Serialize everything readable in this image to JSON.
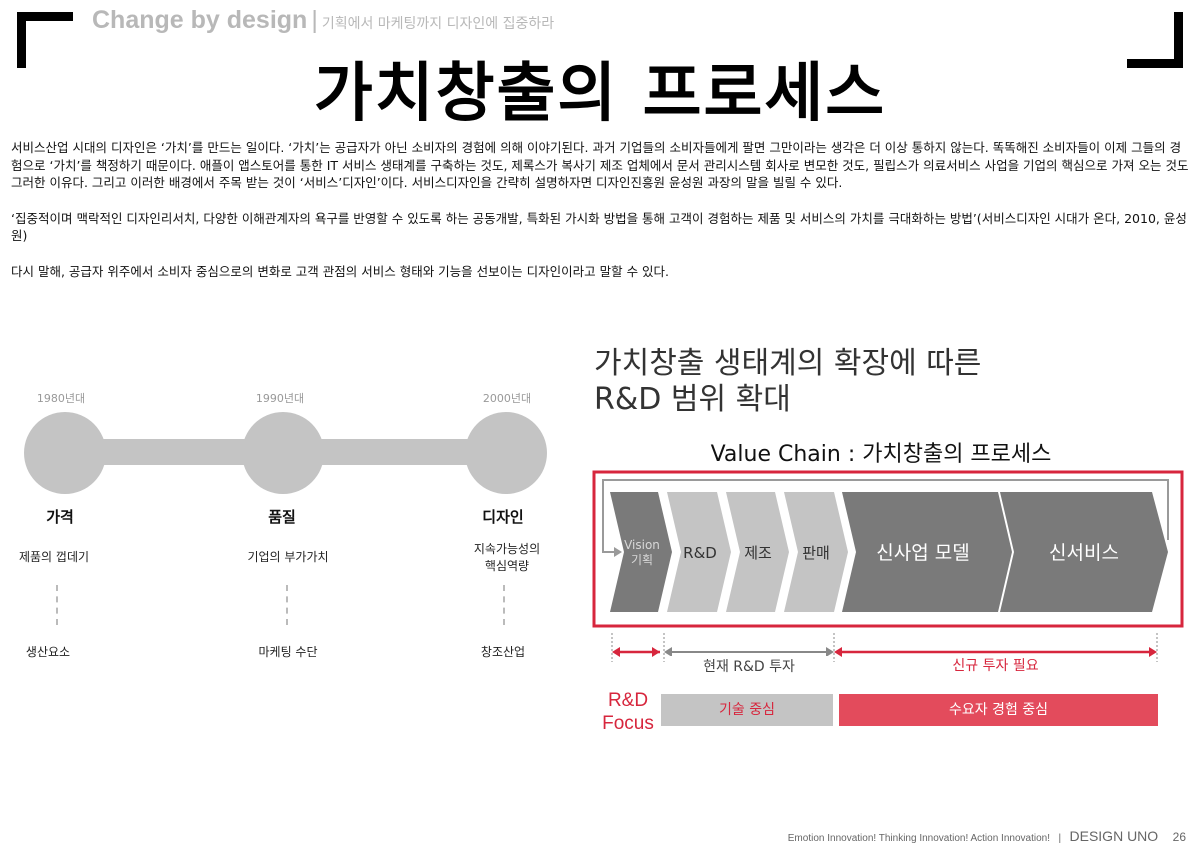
{
  "header": {
    "brand": "Change by design",
    "separator": "|",
    "subtitle": "기획에서 마케팅까지 디자인에 집중하라"
  },
  "title": "가치창출의 프로세스",
  "paragraphs": [
    "서비스산업 시대의 디자인은 ‘가치’를 만드는 일이다. ‘가치’는 공급자가 아닌 소비자의 경험에 의해 이야기된다. 과거 기업들의 소비자들에게 팔면 그만이라는 생각은 더 이상 통하지 않는다. 똑똑해진 소비자들이 이제 그들의 경험으로 ‘가치’를 책정하기 때문이다. 애플이 앱스토어를 통한 IT 서비스 생태계를 구축하는 것도, 제록스가 복사기 제조 업체에서 문서 관리시스템 회사로 변모한 것도, 필립스가 의료서비스 사업을 기업의 핵심으로 가져 오는 것도 그러한 이유다. 그리고 이러한 배경에서 주목 받는 것이 ‘서비스’디자인’이다. 서비스디자인을 간략히 설명하자면 디자인진흥원 윤성원 과장의 말을 빌릴 수 있다.",
    "‘집중적이며 맥락적인 디자인리서치, 다양한 이해관계자의 욕구를 반영할 수 있도록 하는 공동개발, 특화된 가시화 방법을 통해 고객이 경험하는 제품 및 서비스의 가치를 극대화하는 방법’(서비스디자인 시대가 온다, 2010, 윤성원)",
    "다시 말해, 공급자 위주에서 소비자 중심으로의 변화로 고객 관점의 서비스 형태와 기능을 선보이는 디자인이라고 말할 수 있다."
  ],
  "timeline": [
    {
      "year": "1980년대",
      "name": "가격",
      "desc": "제품의 껍데기",
      "outcome": "생산요소"
    },
    {
      "year": "1990년대",
      "name": "품질",
      "desc": "기업의 부가가치",
      "outcome": "마케팅 수단"
    },
    {
      "year": "2000년대",
      "name": "디자인",
      "desc": "지속가능성의\n핵심역량",
      "outcome": "창조산업"
    }
  ],
  "diagram": {
    "title_line1": "가치창출 생태계의 확장에 따른",
    "title_line2": "R&D 범위 확대",
    "value_chain_title": "Value Chain : 가치창출의 프로세스",
    "chain": [
      {
        "label": "Vision",
        "label2": "기획"
      },
      {
        "label": "R&D"
      },
      {
        "label": "제조"
      },
      {
        "label": "판매"
      },
      {
        "label": "신사업 모델"
      },
      {
        "label": "신서비스"
      }
    ],
    "current_investment": "현재 R&D 투자",
    "new_investment": "신규 투자 필요",
    "focus_line1": "R&D",
    "focus_line2": "Focus",
    "focus_tech": "기술 중심",
    "focus_user": "수요자 경험 중심",
    "colors": {
      "red": "#d7263d",
      "gray_light": "#c4c4c4",
      "gray_dark": "#7a7a7a",
      "user_box": "#e34b5c"
    }
  },
  "footer": {
    "slogan": "Emotion Innovation! Thinking Innovation! Action Innovation!",
    "separator": "|",
    "brand": "DESIGN UNO",
    "page": "26"
  }
}
